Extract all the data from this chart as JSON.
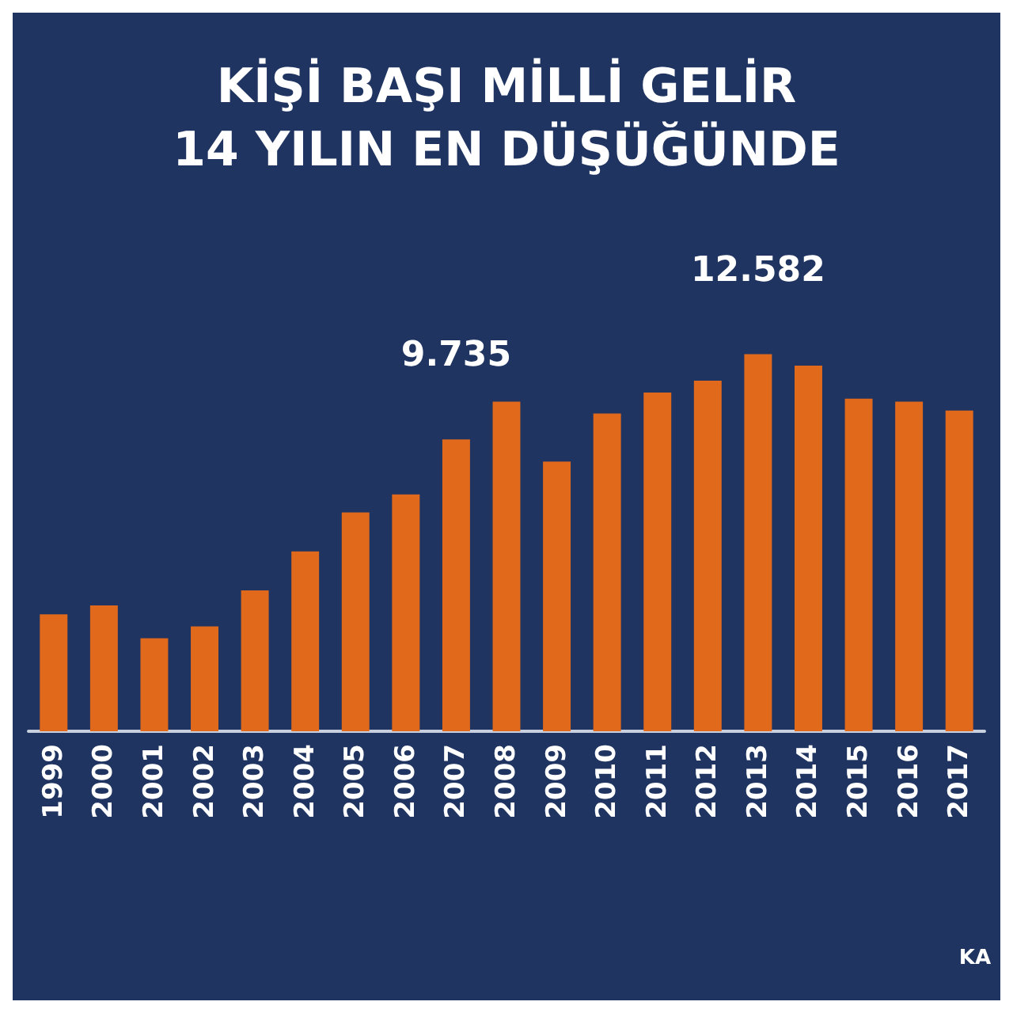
{
  "chart_data": {
    "type": "bar",
    "title": "KİŞİ BAŞI MİLLİ GELİR\n14 YILIN EN DÜŞÜĞÜNDE",
    "categories": [
      "1999",
      "2000",
      "2001",
      "2002",
      "2003",
      "2004",
      "2005",
      "2006",
      "2007",
      "2008",
      "2009",
      "2010",
      "2011",
      "2012",
      "2013",
      "2014",
      "2015",
      "2016",
      "2017"
    ],
    "values": [
      3900,
      4200,
      3100,
      3500,
      4700,
      6000,
      7300,
      7900,
      9735,
      11000,
      9000,
      10600,
      11300,
      11700,
      12582,
      12200,
      11100,
      11000,
      10700
    ],
    "value_labels": [
      null,
      null,
      null,
      null,
      null,
      null,
      null,
      null,
      "9.735",
      null,
      null,
      null,
      null,
      null,
      "12.582",
      null,
      null,
      null,
      null
    ],
    "tick_labels": "x",
    "color": "#e0691c",
    "annotations": [
      "KA"
    ]
  }
}
